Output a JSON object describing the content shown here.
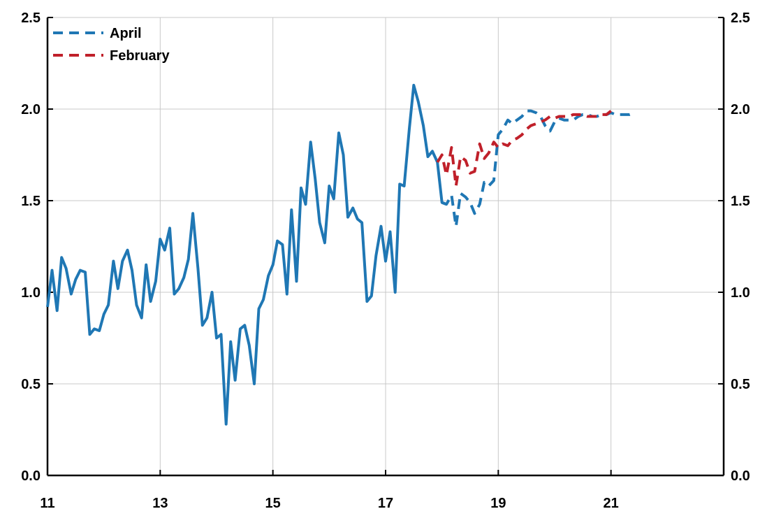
{
  "chart_data": {
    "type": "line",
    "title": "",
    "xlabel": "",
    "ylabel": "",
    "xlim": [
      11,
      23
    ],
    "ylim": [
      0,
      2.5
    ],
    "grid": true,
    "legend_position": "top-left",
    "x_ticks": [
      "11",
      "13",
      "15",
      "17",
      "19",
      "21"
    ],
    "x_tick_values": [
      11,
      13,
      15,
      17,
      19,
      21
    ],
    "y_ticks_left": [
      "0.0",
      "0.5",
      "1.0",
      "1.5",
      "2.0",
      "2.5"
    ],
    "y_ticks_right": [
      "0.0",
      "0.5",
      "1.0",
      "1.5",
      "2.0",
      "2.5"
    ],
    "y_tick_values": [
      0,
      0.5,
      1.0,
      1.5,
      2.0,
      2.5
    ],
    "series": [
      {
        "key": "actual",
        "color": "#1f77b4",
        "style": "solid",
        "x": [
          11.0,
          11.08,
          11.17,
          11.25,
          11.33,
          11.42,
          11.5,
          11.58,
          11.67,
          11.75,
          11.83,
          11.92,
          12.0,
          12.08,
          12.17,
          12.25,
          12.33,
          12.42,
          12.5,
          12.58,
          12.67,
          12.75,
          12.83,
          12.92,
          13.0,
          13.08,
          13.17,
          13.25,
          13.33,
          13.42,
          13.5,
          13.58,
          13.67,
          13.75,
          13.83,
          13.92,
          14.0,
          14.08,
          14.17,
          14.25,
          14.33,
          14.42,
          14.5,
          14.58,
          14.67,
          14.75,
          14.83,
          14.92,
          15.0,
          15.08,
          15.17,
          15.25,
          15.33,
          15.42,
          15.5,
          15.58,
          15.67,
          15.75,
          15.83,
          15.92,
          16.0,
          16.08,
          16.17,
          16.25,
          16.33,
          16.42,
          16.5,
          16.58,
          16.67,
          16.75,
          16.83,
          16.92,
          17.0,
          17.08,
          17.17,
          17.25,
          17.33,
          17.42,
          17.5,
          17.58,
          17.67,
          17.75,
          17.83,
          17.92,
          18.0,
          18.08
        ],
        "y": [
          0.92,
          1.12,
          0.9,
          1.19,
          1.13,
          0.99,
          1.07,
          1.12,
          1.11,
          0.77,
          0.8,
          0.79,
          0.88,
          0.93,
          1.17,
          1.02,
          1.17,
          1.23,
          1.12,
          0.93,
          0.86,
          1.15,
          0.95,
          1.06,
          1.29,
          1.23,
          1.35,
          0.99,
          1.02,
          1.08,
          1.18,
          1.43,
          1.13,
          0.82,
          0.86,
          1.0,
          0.75,
          0.77,
          0.28,
          0.73,
          0.52,
          0.8,
          0.82,
          0.71,
          0.5,
          0.91,
          0.96,
          1.09,
          1.15,
          1.28,
          1.26,
          0.99,
          1.45,
          1.06,
          1.57,
          1.48,
          1.82,
          1.62,
          1.38,
          1.27,
          1.58,
          1.51,
          1.87,
          1.75,
          1.41,
          1.46,
          1.4,
          1.38,
          0.95,
          0.98,
          1.2,
          1.36,
          1.17,
          1.33,
          1.0,
          1.59,
          1.58,
          1.89,
          2.13,
          2.04,
          1.91,
          1.74,
          1.77,
          1.71,
          1.49,
          1.48
        ]
      },
      {
        "key": "april",
        "name": "April",
        "color": "#1f77b4",
        "style": "dashed",
        "x": [
          18.0,
          18.08,
          18.17,
          18.25,
          18.33,
          18.42,
          18.5,
          18.58,
          18.67,
          18.75,
          18.83,
          18.92,
          19.0,
          19.08,
          19.17,
          19.25,
          19.33,
          19.42,
          19.5,
          19.58,
          19.67,
          19.75,
          19.83,
          19.92,
          20.0,
          20.08,
          20.17,
          20.25,
          20.33,
          20.42,
          20.5,
          20.58,
          20.67,
          20.75,
          20.83,
          20.92,
          21.0,
          21.08,
          21.17,
          21.25,
          21.33,
          21.42
        ],
        "y": [
          1.49,
          1.48,
          1.53,
          1.36,
          1.54,
          1.52,
          1.49,
          1.43,
          1.48,
          1.6,
          1.58,
          1.61,
          1.86,
          1.89,
          1.94,
          1.92,
          1.94,
          1.96,
          1.99,
          1.99,
          1.98,
          1.96,
          1.91,
          1.88,
          1.93,
          1.95,
          1.94,
          1.94,
          1.94,
          1.96,
          1.97,
          1.97,
          1.96,
          1.96,
          1.97,
          1.97,
          1.98,
          1.97,
          1.97,
          1.97,
          1.97,
          1.98
        ]
      },
      {
        "key": "february",
        "name": "February",
        "color": "#c0202a",
        "style": "dashed",
        "x": [
          17.92,
          18.0,
          18.08,
          18.17,
          18.25,
          18.33,
          18.42,
          18.5,
          18.58,
          18.67,
          18.75,
          18.83,
          18.92,
          19.0,
          19.08,
          19.17,
          19.25,
          19.33,
          19.42,
          19.5,
          19.58,
          19.67,
          19.75,
          19.83,
          19.92,
          20.0,
          20.08,
          20.17,
          20.25,
          20.33,
          20.42,
          20.5,
          20.58,
          20.67,
          20.75,
          20.83,
          20.92,
          21.0,
          21.08
        ],
        "y": [
          1.71,
          1.75,
          1.64,
          1.79,
          1.58,
          1.74,
          1.72,
          1.65,
          1.66,
          1.81,
          1.73,
          1.76,
          1.82,
          1.79,
          1.81,
          1.8,
          1.83,
          1.84,
          1.86,
          1.89,
          1.91,
          1.92,
          1.93,
          1.94,
          1.96,
          1.95,
          1.96,
          1.96,
          1.96,
          1.97,
          1.97,
          1.97,
          1.96,
          1.96,
          1.96,
          1.97,
          1.97,
          1.99,
          1.98
        ]
      }
    ]
  }
}
